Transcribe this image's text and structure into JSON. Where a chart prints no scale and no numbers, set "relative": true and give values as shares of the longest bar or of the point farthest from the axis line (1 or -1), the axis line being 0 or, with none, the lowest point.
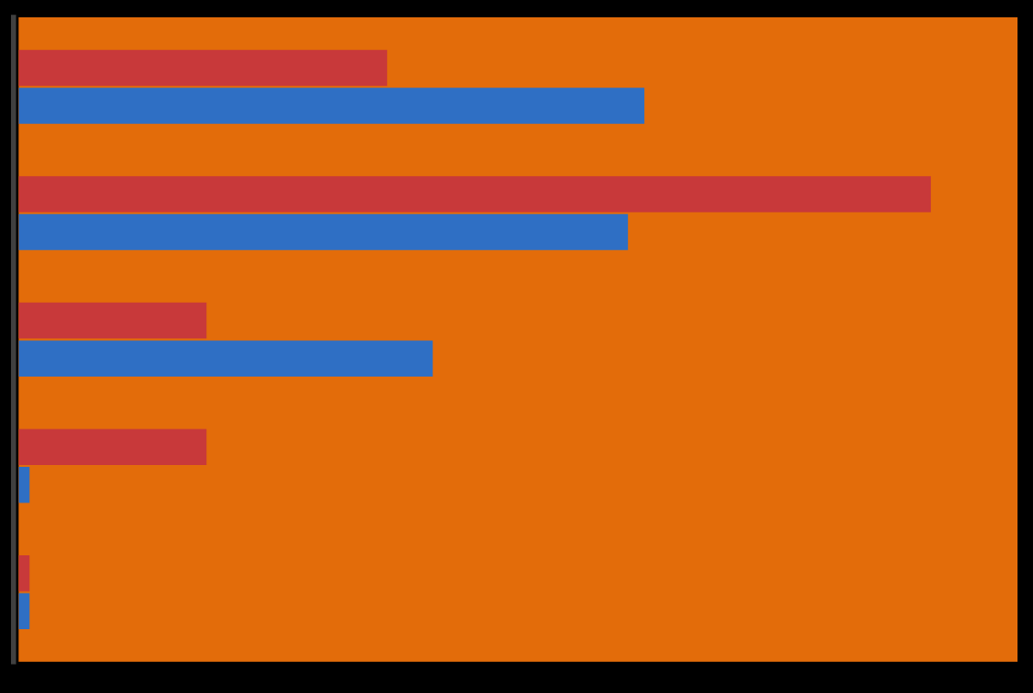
{
  "chart_data": {
    "type": "bar",
    "orientation": "horizontal",
    "relative": true,
    "categories": [
      null,
      null,
      null,
      null,
      null
    ],
    "series": [
      {
        "color": "#c8393a",
        "values": [
          0.404,
          1,
          0.206,
          0.206,
          0.012
        ]
      },
      {
        "color": "#2f6fc4",
        "values": [
          0.686,
          0.668,
          0.454,
          0.012,
          0.012
        ]
      }
    ],
    "grid": false
  }
}
